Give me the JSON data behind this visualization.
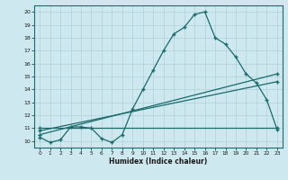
{
  "xlabel": "Humidex (Indice chaleur)",
  "bg_color": "#cde8ee",
  "line_color": "#1a6b6b",
  "grid_color": "#b0d0d8",
  "xlim": [
    -0.5,
    23.5
  ],
  "ylim": [
    9.5,
    20.5
  ],
  "xticks": [
    0,
    1,
    2,
    3,
    4,
    5,
    6,
    7,
    8,
    9,
    10,
    11,
    12,
    13,
    14,
    15,
    16,
    17,
    18,
    19,
    20,
    21,
    22,
    23
  ],
  "yticks": [
    10,
    11,
    12,
    13,
    14,
    15,
    16,
    17,
    18,
    19,
    20
  ],
  "line1_x": [
    0,
    1,
    2,
    3,
    4,
    5,
    6,
    7,
    8,
    9,
    10,
    11,
    12,
    13,
    14,
    15,
    16,
    17,
    18,
    19,
    20,
    21,
    22,
    23
  ],
  "line1_y": [
    10.3,
    9.9,
    10.1,
    11.1,
    11.1,
    11.0,
    10.2,
    9.9,
    10.5,
    12.5,
    14.0,
    15.5,
    17.0,
    18.3,
    18.8,
    19.8,
    20.0,
    18.0,
    17.5,
    16.5,
    15.2,
    14.5,
    13.2,
    10.9
  ],
  "line2_x": [
    0,
    23
  ],
  "line2_y": [
    10.5,
    15.2
  ],
  "line3_x": [
    0,
    23
  ],
  "line3_y": [
    10.8,
    14.6
  ],
  "line4_x": [
    0,
    23
  ],
  "line4_y": [
    11.0,
    11.0
  ]
}
